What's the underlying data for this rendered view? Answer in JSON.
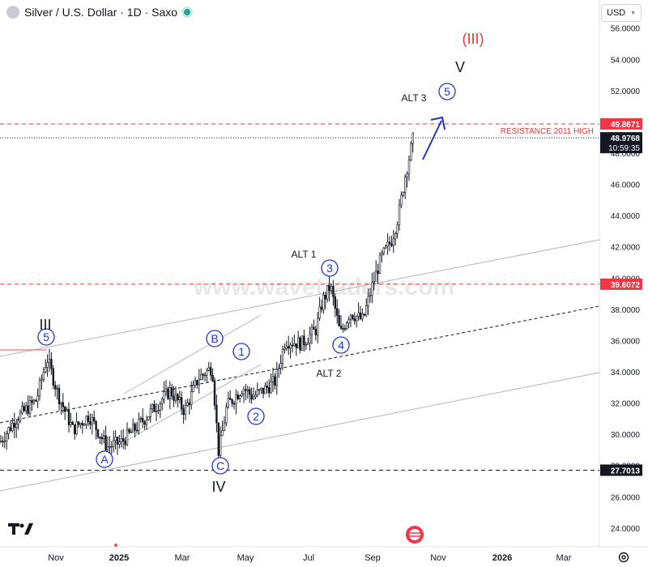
{
  "header": {
    "title": "Silver / U.S. Dollar · 1D · Saxo",
    "currency": "USD"
  },
  "watermark": "www.wavetraders.com",
  "chart_data": {
    "type": "candlestick",
    "y_ticks": [
      "24.0000",
      "26.0000",
      "28.0000",
      "30.0000",
      "32.0000",
      "34.0000",
      "36.0000",
      "38.0000",
      "40.0000",
      "42.0000",
      "44.0000",
      "46.0000",
      "48.0000",
      "50.0000",
      "52.0000",
      "54.0000",
      "56.0000"
    ],
    "ylim": [
      22.8,
      57.8
    ],
    "x_ticks": [
      "Nov",
      "2025",
      "Mar",
      "May",
      "Jul",
      "Sep",
      "Nov",
      "2026",
      "Mar"
    ],
    "price_labels": [
      {
        "text": "49.8671",
        "value": 49.8671,
        "color": "#f23645"
      },
      {
        "text": "48.9768",
        "value": 48.9768,
        "color": "#131722",
        "sub": "10:59:35"
      },
      {
        "text": "39.6072",
        "value": 39.6072,
        "color": "#f23645"
      },
      {
        "text": "27.7013",
        "value": 27.7013,
        "color": "#131722"
      }
    ],
    "levels": [
      {
        "value": 49.8671,
        "color": "#e53935",
        "style": "dashed",
        "label": "RESISTANCE 2011  HIGH"
      },
      {
        "value": 48.9768,
        "color": "#131722",
        "style": "dotted"
      },
      {
        "value": 39.6072,
        "color": "#e53935",
        "style": "dashed"
      },
      {
        "value": 27.7013,
        "color": "#131722",
        "style": "dashed"
      }
    ],
    "circled_labels": [
      "5",
      "A",
      "B",
      "C",
      "1",
      "2",
      "3",
      "4",
      "5"
    ],
    "wave_labels": [
      "III",
      "IV",
      "V",
      "(III)",
      "ALT 1",
      "ALT 2",
      "ALT 3"
    ]
  }
}
